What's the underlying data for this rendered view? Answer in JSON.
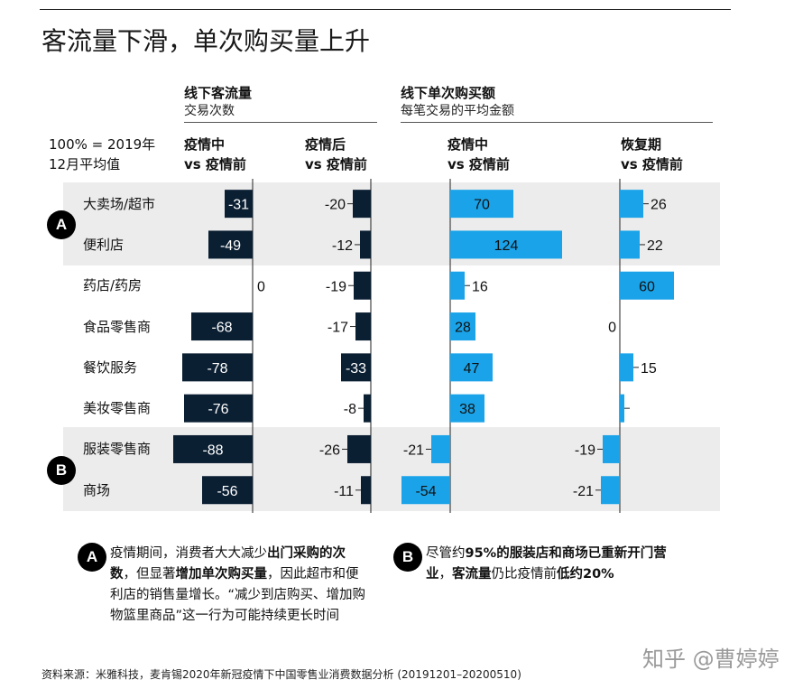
{
  "title": "客流量下滑，单次购买量上升",
  "groups": {
    "traffic": {
      "title": "线下客流量",
      "subtitle": "交易次数"
    },
    "basket": {
      "title": "线下单次购买额",
      "subtitle": "每笔交易的平均金额"
    }
  },
  "base_note": {
    "line1": "100% = 2019年",
    "line2": "12月平均值"
  },
  "columns": [
    {
      "line1": "疫情中",
      "line2": "vs 疫情前"
    },
    {
      "line1": "疫情后",
      "line2": "vs 疫情前"
    },
    {
      "line1": "疫情中",
      "line2": "vs 疫情前"
    },
    {
      "line1": "恢复期",
      "line2": "vs 疫情前"
    }
  ],
  "badges": {
    "a": "A",
    "b": "B"
  },
  "colors": {
    "traffic": "#0b1f33",
    "basket": "#1aa3e8",
    "band": "#ececec"
  },
  "chart_data": {
    "type": "bar",
    "orientation": "horizontal",
    "categories": [
      "大卖场/超市",
      "便利店",
      "药店/药房",
      "食品零售商",
      "餐饮服务",
      "美妆零售商",
      "服装零售商",
      "商场"
    ],
    "series": [
      {
        "values": [
          -31,
          -49,
          0,
          -68,
          -78,
          -76,
          -88,
          -56
        ]
      },
      {
        "values": [
          -20,
          -12,
          -19,
          -17,
          -33,
          -8,
          -26,
          -11
        ]
      },
      {
        "values": [
          70,
          124,
          16,
          28,
          47,
          38,
          -21,
          -54
        ]
      },
      {
        "values": [
          26,
          22,
          60,
          0,
          15,
          5,
          -19,
          -21
        ]
      }
    ],
    "value_labels": [
      [
        "-31",
        "-49",
        "0",
        "-68",
        "-78",
        "-76",
        "-88",
        "-56"
      ],
      [
        "-20",
        "-12",
        "-19",
        "-17",
        "-33",
        "-8",
        "-26",
        "-11"
      ],
      [
        "70",
        "124",
        "16",
        "28",
        "47",
        "38",
        "-21",
        "-54"
      ],
      [
        "26",
        "22",
        "60",
        "0",
        "15",
        "",
        "-19",
        "-21"
      ]
    ],
    "group_bands": [
      {
        "badge": "A",
        "rows": [
          0,
          1
        ]
      },
      {
        "badge": "B",
        "rows": [
          6,
          7
        ]
      }
    ]
  },
  "notes": {
    "a": {
      "badge": "A",
      "parts": [
        {
          "t": "疫情期间，消费者大大减少",
          "b": false
        },
        {
          "t": "出门采购的次数",
          "b": true
        },
        {
          "t": "，但显著",
          "b": false
        },
        {
          "t": "增加单次购买量",
          "b": true
        },
        {
          "t": "，因此超市和便利店的销售量增长。“减少到店购买、增加购物篮里商品”这一行为可能持续更长时间",
          "b": false
        }
      ]
    },
    "b": {
      "badge": "B",
      "parts": [
        {
          "t": "尽管约",
          "b": false
        },
        {
          "t": "95%的服装店和商场已重新开门营业",
          "b": true
        },
        {
          "t": "，",
          "b": false
        },
        {
          "t": "客流量",
          "b": true
        },
        {
          "t": "仍比疫情前",
          "b": false
        },
        {
          "t": "低约20%",
          "b": true
        }
      ]
    }
  },
  "source": "资料来源：米雅科技，麦肯锡2020年新冠疫情下中国零售业消费数据分析 (20191201–20200510)",
  "watermark": "知乎 @曹婷婷"
}
